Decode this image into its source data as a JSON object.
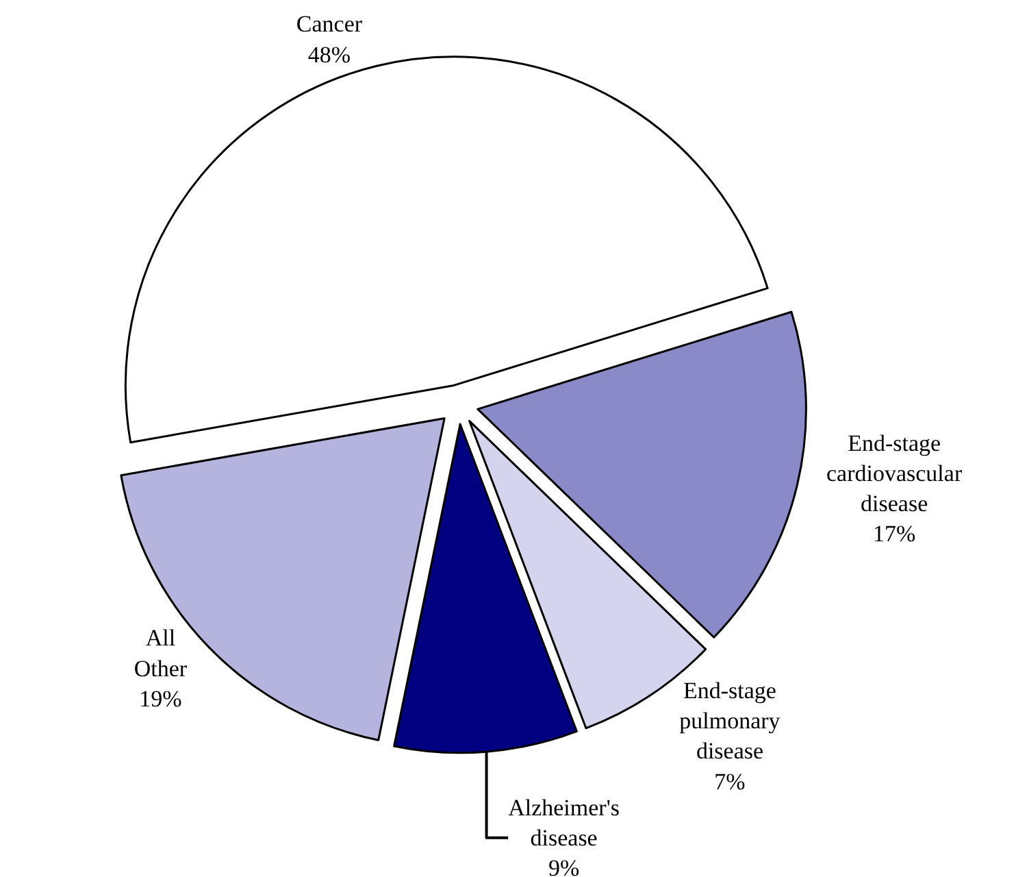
{
  "chart_data": {
    "type": "pie",
    "categories": [
      "Cancer",
      "End-stage cardiovascular disease",
      "End-stage pulmonary disease",
      "Alzheimer's disease",
      "All Other"
    ],
    "values": [
      48,
      17,
      7,
      9,
      19
    ],
    "value_labels": [
      "48%",
      "17%",
      "7%",
      "9%",
      "19%"
    ],
    "colors": [
      "#ffffff",
      "#8a8ac8",
      "#d4d4ee",
      "#000080",
      "#b4b4de"
    ],
    "legend": false
  }
}
